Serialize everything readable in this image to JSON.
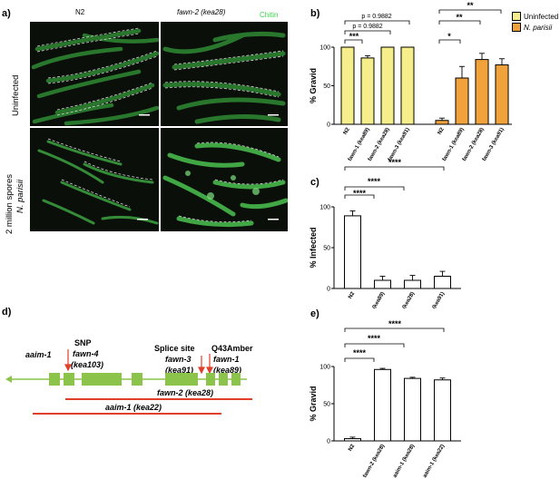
{
  "panel_a": {
    "letter": "a)",
    "col_labels": [
      "N2",
      "fawn-2 (kea28)"
    ],
    "stain_label": "Chitin",
    "row_labels": [
      "Uninfected",
      "2 million spores",
      "N. parisii"
    ]
  },
  "panel_b": {
    "letter": "b)",
    "legend": [
      {
        "name": "Uninfected",
        "color": "#f5ee8a"
      },
      {
        "name": "N. parisii",
        "color": "#f2a23a"
      }
    ],
    "comparisons": [
      "p = 0.9882",
      "p = 0.9882",
      "***",
      "**",
      "**",
      "*"
    ]
  },
  "panel_c": {
    "letter": "c)",
    "comparisons": [
      "****",
      "****",
      "****"
    ]
  },
  "panel_d": {
    "letter": "d)",
    "labels": {
      "aaim1": "aaim-1",
      "snp": "SNP",
      "fawn4": "fawn-4",
      "kea103": "(kea103)",
      "splice": "Splice site",
      "fawn3": "fawn-3",
      "kea91": "(kea91)",
      "q43": "Q43Amber",
      "fawn1": "fawn-1",
      "kea89": "(kea89)",
      "fawn2_bar": "fawn-2 (kea28)",
      "aaim1_bar": "aaim-1 (kea22)"
    }
  },
  "panel_e": {
    "letter": "e)",
    "comparisons": [
      "****",
      "****",
      "****"
    ]
  },
  "chart_data": [
    {
      "id": "b",
      "type": "bar",
      "ylabel": "% Gravid",
      "ylim": [
        0,
        100
      ],
      "yticks": [
        0,
        50,
        100
      ],
      "categories": [
        "N2",
        "fawn-1 (kea89)",
        "fawn-2 (kea28)",
        "fawn-3 (kea91)",
        "N2",
        "fawn-1 (kea89)",
        "fawn-2 (kea28)",
        "fawn-3 (kea91)"
      ],
      "series": [
        {
          "name": "Uninfected",
          "values": [
            100,
            86,
            100,
            100,
            null,
            null,
            null,
            null
          ],
          "errors": [
            0,
            3,
            0,
            0,
            null,
            null,
            null,
            null
          ]
        },
        {
          "name": "N. parisii",
          "values": [
            null,
            null,
            null,
            null,
            5,
            60,
            84,
            77
          ],
          "errors": [
            null,
            null,
            null,
            null,
            3,
            15,
            8,
            8
          ]
        }
      ]
    },
    {
      "id": "c",
      "type": "bar",
      "ylabel": "% Infected",
      "ylim": [
        0,
        100
      ],
      "yticks": [
        0,
        50,
        100
      ],
      "categories": [
        "N2",
        "fawn-1 (kea89)",
        "fawn-2 (kea28)",
        "fawn-3 (kea91)"
      ],
      "values": [
        89,
        10,
        10,
        15
      ],
      "errors": [
        6,
        5,
        6,
        6
      ]
    },
    {
      "id": "e",
      "type": "bar",
      "ylabel": "% Gravid",
      "ylim": [
        0,
        100
      ],
      "yticks": [
        0,
        50,
        100
      ],
      "categories": [
        "N2",
        "fawn-2 (kea28)",
        "aaim-1 (kea28)",
        "aaim-1 (kea22)"
      ],
      "values": [
        3,
        96,
        84,
        82
      ],
      "errors": [
        2,
        1.5,
        1.5,
        2.5
      ]
    }
  ]
}
